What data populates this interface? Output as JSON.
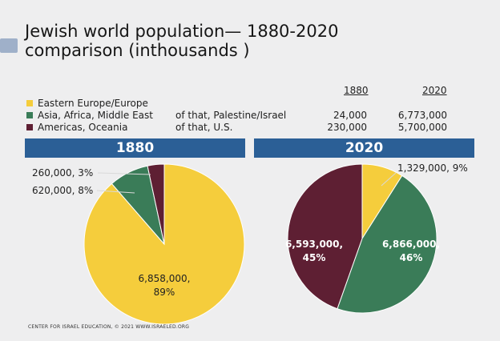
{
  "title_lines": [
    "Jewish world population— 1880-2020",
    "comparison (inthousands )"
  ],
  "column_headers": [
    "1880",
    "2020"
  ],
  "legend": [
    {
      "label": "Eastern Europe/Europe",
      "color": "#f5cd3c"
    },
    {
      "label": "Asia, Africa, Middle East",
      "color": "#3a7c58"
    },
    {
      "label": "Americas, Oceania",
      "color": "#5e1f33"
    }
  ],
  "sub_rows": [
    {
      "label": "of that, Palestine/Israel",
      "v1880": "24,000",
      "v2020": "6,773,000"
    },
    {
      "label": "of that, U.S.",
      "v1880": "230,000",
      "v2020": "5,700,000"
    }
  ],
  "chart_data": [
    {
      "type": "pie",
      "title": "1880",
      "slices": [
        {
          "region": "Eastern Europe/Europe",
          "value": 6858000,
          "percent": 89,
          "label_line1": "6,858,000,",
          "label_line2": "89%"
        },
        {
          "region": "Asia, Africa, Middle East",
          "value": 620000,
          "percent": 8,
          "label_line1": "620,000, 8%",
          "label_line2": ""
        },
        {
          "region": "Americas, Oceania",
          "value": 260000,
          "percent": 3,
          "label_line1": "260,000, 3%",
          "label_line2": ""
        }
      ]
    },
    {
      "type": "pie",
      "title": "2020",
      "slices": [
        {
          "region": "Eastern Europe/Europe",
          "value": 1329000,
          "percent": 9,
          "label_line1": "1,329,000, 9%",
          "label_line2": ""
        },
        {
          "region": "Asia, Africa, Middle East",
          "value": 6866000,
          "percent": 46,
          "label_line1": "6,866,000,",
          "label_line2": "46%"
        },
        {
          "region": "Americas, Oceania",
          "value": 6593000,
          "percent": 45,
          "label_line1": "6,593,000,",
          "label_line2": "45%"
        }
      ]
    }
  ],
  "footer": "CENTER FOR ISRAEL EDUCATION, © 2021 WWW.ISRAELED.ORG"
}
